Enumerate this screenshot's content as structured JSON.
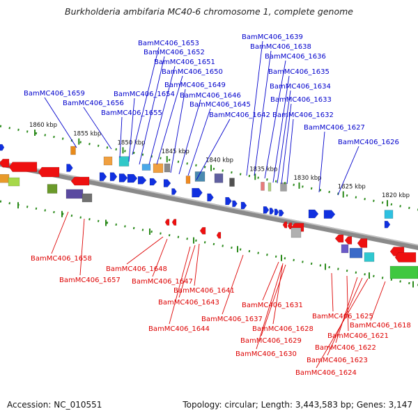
{
  "title": "Burkholderia ambifaria MC40-6 chromosome 1, complete genome",
  "footer": {
    "accession": "Accession: NC_010551",
    "summary": "Topology: circular; Length: 3,443,583 bp; Genes: 3,147"
  },
  "colors": {
    "forward_label": "#0000cc",
    "reverse_label": "#dd0000",
    "forward_gene": "#1030e0",
    "reverse_gene": "#ee1010",
    "scale_tick": "#2a8a1a",
    "backbone": "#8a8a8a"
  },
  "scale_labels": [
    {
      "text": "1860 kbp",
      "kbp": 1860
    },
    {
      "text": "1855 kbp",
      "kbp": 1855
    },
    {
      "text": "1850 kbp",
      "kbp": 1850
    },
    {
      "text": "1845 kbp",
      "kbp": 1845
    },
    {
      "text": "1840 kbp",
      "kbp": 1840
    },
    {
      "text": "1835 kbp",
      "kbp": 1835
    },
    {
      "text": "1830 kbp",
      "kbp": 1830
    },
    {
      "text": "1825 kbp",
      "kbp": 1825
    },
    {
      "text": "1820 kbp",
      "kbp": 1820
    }
  ],
  "forward_genes": [
    "BamMC406_1659",
    "BamMC406_1656",
    "BamMC406_1655",
    "BamMC406_1654",
    "BamMC406_1653",
    "BamMC406_1652",
    "BamMC406_1651",
    "BamMC406_1650",
    "BamMC406_1649",
    "BamMC406_1646",
    "BamMC406_1645",
    "BamMC406_1642",
    "BamMC406_1639",
    "BamMC406_1638",
    "BamMC406_1636",
    "BamMC406_1635",
    "BamMC406_1634",
    "BamMC406_1633",
    "BamMC406_1632",
    "BamMC406_1627",
    "BamMC406_1626"
  ],
  "reverse_genes": [
    "BamMC406_1658",
    "BamMC406_1657",
    "BamMC406_1648",
    "BamMC406_1647",
    "BamMC406_1641",
    "BamMC406_1643",
    "BamMC406_1644",
    "BamMC406_1637",
    "BamMC406_1631",
    "BamMC406_1628",
    "BamMC406_1629",
    "BamMC406_1630",
    "BamMC406_1625",
    "BamMC406_1618",
    "BamMC406_1621",
    "BamMC406_1622",
    "BamMC406_1623",
    "BamMC406_1624"
  ]
}
